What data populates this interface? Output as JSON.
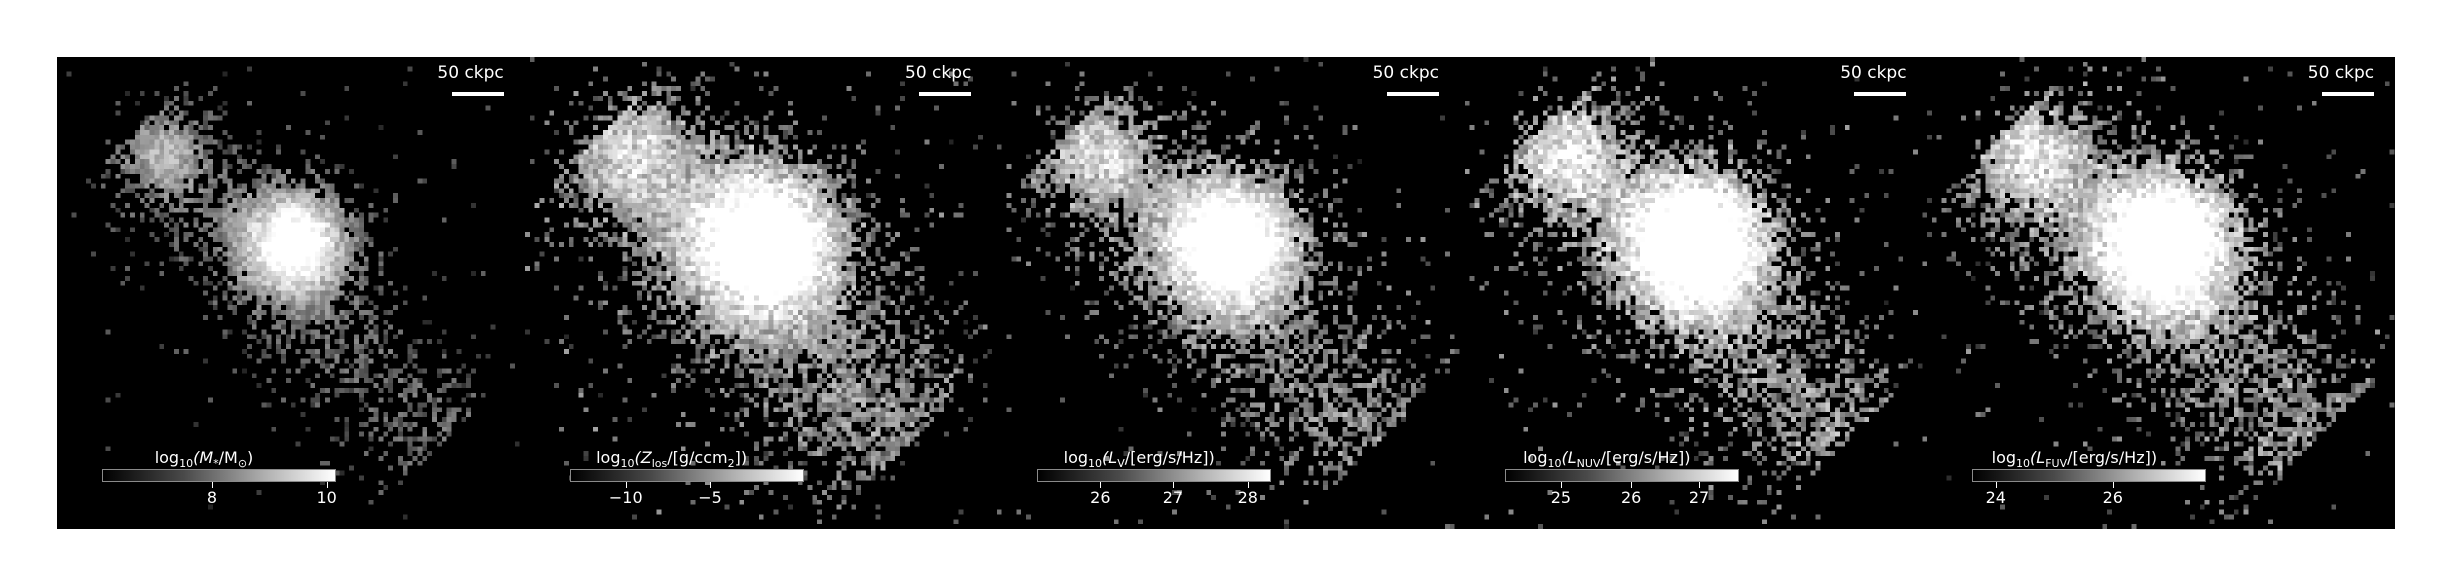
{
  "figure": {
    "panels": [
      {
        "scale_label": "50 ckpc",
        "colorbar": {
          "label_parts": [
            "log",
            "10",
            "(M",
            "*",
            "/M",
            "⊙",
            ")"
          ],
          "ticks": [
            {
              "label": "8",
              "frac": 0.47
            },
            {
              "label": "10",
              "frac": 0.96
            }
          ]
        },
        "brightness": 0.9,
        "noise": 0.12,
        "spread": 1.0
      },
      {
        "scale_label": "50 ckpc",
        "colorbar": {
          "label_parts": [
            "log",
            "10",
            "(Z",
            "los",
            "/[g/ccm",
            "2",
            "])"
          ],
          "ticks": [
            {
              "label": "−10",
              "frac": 0.24
            },
            {
              "label": "−5",
              "frac": 0.6
            }
          ]
        },
        "brightness": 1.0,
        "noise": 0.55,
        "spread": 1.35
      },
      {
        "scale_label": "50 ckpc",
        "colorbar": {
          "label_parts": [
            "log",
            "10",
            "(L",
            "V",
            "/[erg/s/Hz]",
            "",
            ")"
          ],
          "ticks": [
            {
              "label": "26",
              "frac": 0.27
            },
            {
              "label": "27",
              "frac": 0.58
            },
            {
              "label": "28",
              "frac": 0.9
            }
          ]
        },
        "brightness": 0.95,
        "noise": 0.35,
        "spread": 1.2
      },
      {
        "scale_label": "50 ckpc",
        "colorbar": {
          "label_parts": [
            "log",
            "10",
            "(L",
            "NUV",
            "/[erg/s/Hz]",
            "",
            ")"
          ],
          "ticks": [
            {
              "label": "25",
              "frac": 0.24
            },
            {
              "label": "26",
              "frac": 0.54
            },
            {
              "label": "27",
              "frac": 0.83
            }
          ]
        },
        "brightness": 1.1,
        "noise": 0.4,
        "spread": 1.25
      },
      {
        "scale_label": "50 ckpc",
        "colorbar": {
          "label_parts": [
            "log",
            "10",
            "(L",
            "FUV",
            "/[erg/s/Hz]",
            "",
            ")"
          ],
          "ticks": [
            {
              "label": "24",
              "frac": 0.1
            },
            {
              "label": "26",
              "frac": 0.6
            }
          ]
        },
        "brightness": 1.05,
        "noise": 0.42,
        "spread": 1.25
      }
    ]
  }
}
